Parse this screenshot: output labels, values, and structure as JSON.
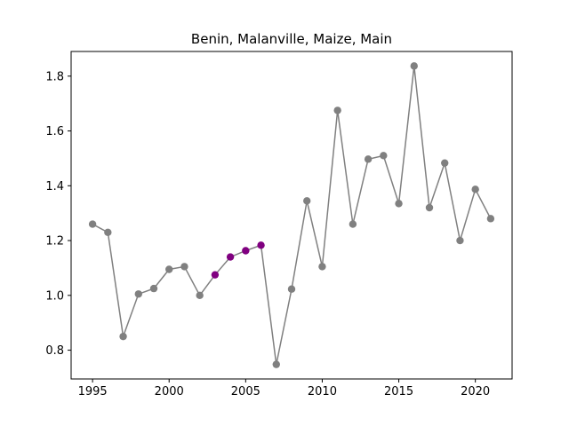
{
  "chart_data": {
    "type": "line",
    "title": "Benin, Malanville, Maize, Main",
    "xlabel": "",
    "ylabel": "",
    "xlim": [
      1993.6,
      2022.4
    ],
    "ylim": [
      0.695,
      1.89
    ],
    "grid": false,
    "legend": "none",
    "x_ticks": [
      1995,
      2000,
      2005,
      2010,
      2015,
      2020
    ],
    "y_ticks": [
      0.8,
      1.0,
      1.2,
      1.4,
      1.6,
      1.8
    ],
    "y_tick_labels": [
      "0.8",
      "1.0",
      "1.2",
      "1.4",
      "1.6",
      "1.8"
    ],
    "line_color": "#808080",
    "point_color": "#808080",
    "highlight_color": "#800080",
    "x": [
      1995,
      1996,
      1997,
      1998,
      1999,
      2000,
      2001,
      2002,
      2003,
      2004,
      2005,
      2006,
      2007,
      2008,
      2009,
      2010,
      2011,
      2012,
      2013,
      2014,
      2015,
      2016,
      2017,
      2018,
      2019,
      2020,
      2021
    ],
    "y": [
      1.26,
      1.23,
      0.85,
      1.005,
      1.025,
      1.095,
      1.105,
      1.0,
      1.075,
      1.14,
      1.163,
      1.183,
      0.748,
      1.023,
      1.345,
      1.105,
      1.675,
      1.26,
      1.497,
      1.51,
      1.335,
      1.837,
      1.32,
      1.483,
      1.2,
      1.387,
      1.28
    ],
    "highlighted_x": [
      2003,
      2004,
      2005,
      2006
    ]
  }
}
